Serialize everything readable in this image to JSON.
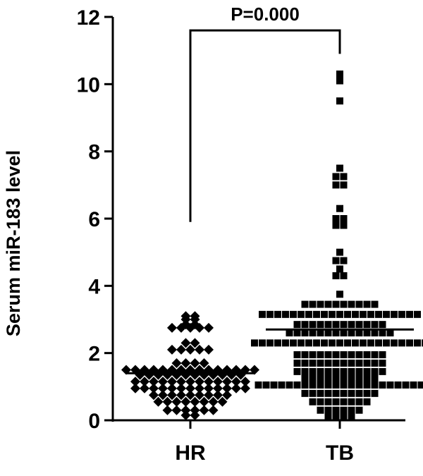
{
  "chart_data": {
    "type": "scatter",
    "title": "",
    "xlabel": "",
    "ylabel": "Serum miR-183 level",
    "ylim": [
      0,
      12
    ],
    "yticks": [
      0,
      2,
      4,
      6,
      8,
      10,
      12
    ],
    "categories": [
      "HR",
      "TB"
    ],
    "grid": false,
    "legend": "none",
    "annotation": {
      "text": "P=0.000",
      "between": [
        "HR",
        "TB"
      ],
      "y_top": 11.6,
      "left_end": 5.9,
      "right_end": 10.9
    },
    "series": [
      {
        "category": "HR",
        "marker": "diamond",
        "mean": 1.4,
        "values": [
          3.1,
          3.1,
          3.0,
          3.0,
          2.85,
          2.85,
          2.75,
          2.75,
          2.75,
          2.75,
          2.75,
          2.3,
          2.3,
          2.1,
          2.1,
          2.1,
          2.1,
          2.1,
          1.7,
          1.7,
          1.7,
          1.7,
          1.5,
          1.5,
          1.5,
          1.5,
          1.5,
          1.5,
          1.5,
          1.5,
          1.5,
          1.5,
          1.5,
          1.5,
          1.5,
          1.5,
          1.5,
          1.35,
          1.35,
          1.35,
          1.35,
          1.35,
          1.35,
          1.35,
          1.35,
          1.35,
          1.35,
          1.35,
          1.35,
          1.15,
          1.15,
          1.15,
          1.15,
          1.15,
          1.15,
          1.15,
          1.15,
          1.15,
          1.15,
          1.15,
          1.15,
          1.15,
          0.95,
          0.95,
          0.95,
          0.95,
          0.95,
          0.95,
          0.95,
          0.95,
          0.95,
          0.95,
          0.95,
          0.95,
          0.95,
          0.75,
          0.75,
          0.75,
          0.75,
          0.75,
          0.75,
          0.75,
          0.75,
          0.75,
          0.55,
          0.55,
          0.55,
          0.55,
          0.55,
          0.55,
          0.55,
          0.55,
          0.3,
          0.3,
          0.3,
          0.3,
          0.3,
          0.3,
          0.15,
          0.15
        ]
      },
      {
        "category": "TB",
        "marker": "square",
        "mean": 2.7,
        "values": [
          10.3,
          10.1,
          9.5,
          7.5,
          7.25,
          7.25,
          7.0,
          7.0,
          6.3,
          6.0,
          6.0,
          5.8,
          5.8,
          5.0,
          4.75,
          4.75,
          4.5,
          4.3,
          4.3,
          3.75,
          3.45,
          3.45,
          3.45,
          3.45,
          3.45,
          3.45,
          3.45,
          3.45,
          3.45,
          3.45,
          3.15,
          3.15,
          3.15,
          3.15,
          3.15,
          3.15,
          3.15,
          3.15,
          3.15,
          3.15,
          3.15,
          3.15,
          3.15,
          3.15,
          3.15,
          3.15,
          3.15,
          3.15,
          3.15,
          3.15,
          3.15,
          2.85,
          2.85,
          2.85,
          2.85,
          2.85,
          2.85,
          2.85,
          2.85,
          2.85,
          2.85,
          2.85,
          2.85,
          2.6,
          2.6,
          2.6,
          2.6,
          2.6,
          2.6,
          2.6,
          2.6,
          2.6,
          2.6,
          2.6,
          2.6,
          2.6,
          2.6,
          2.3,
          2.3,
          2.3,
          2.3,
          2.3,
          2.3,
          2.3,
          2.3,
          2.3,
          2.3,
          2.3,
          2.3,
          2.3,
          2.3,
          2.3,
          2.3,
          2.3,
          2.3,
          2.3,
          2.3,
          2.3,
          2.3,
          2.3,
          1.95,
          1.95,
          1.95,
          1.95,
          1.95,
          1.95,
          1.95,
          1.95,
          1.95,
          1.95,
          1.95,
          1.95,
          1.7,
          1.7,
          1.7,
          1.7,
          1.7,
          1.7,
          1.7,
          1.7,
          1.7,
          1.7,
          1.7,
          1.7,
          1.45,
          1.45,
          1.45,
          1.45,
          1.45,
          1.45,
          1.45,
          1.45,
          1.45,
          1.45,
          1.45,
          1.45,
          1.25,
          1.25,
          1.25,
          1.25,
          1.25,
          1.25,
          1.25,
          1.25,
          1.25,
          1.25,
          1.05,
          1.05,
          1.05,
          1.05,
          1.05,
          1.05,
          1.05,
          1.05,
          1.05,
          1.05,
          1.05,
          1.05,
          1.05,
          1.05,
          1.05,
          1.05,
          1.05,
          1.05,
          1.05,
          1.05,
          1.05,
          1.05,
          0.8,
          0.8,
          0.8,
          0.8,
          0.8,
          0.8,
          0.8,
          0.8,
          0.8,
          0.8,
          0.55,
          0.55,
          0.55,
          0.55,
          0.55,
          0.55,
          0.55,
          0.55,
          0.3,
          0.3,
          0.3,
          0.3,
          0.3,
          0.3,
          0.1,
          0.1,
          0.1,
          0.1
        ]
      }
    ],
    "colors": {
      "marker": "#000000",
      "axis": "#000000",
      "background": "#ffffff"
    }
  }
}
